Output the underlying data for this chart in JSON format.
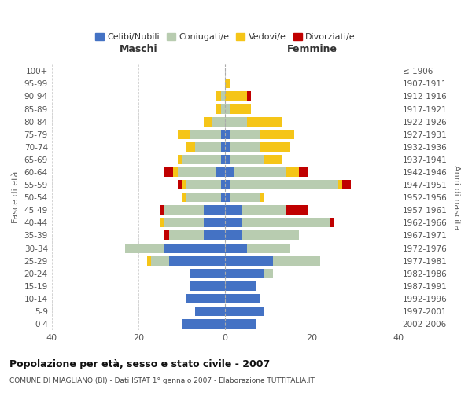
{
  "age_groups": [
    "0-4",
    "5-9",
    "10-14",
    "15-19",
    "20-24",
    "25-29",
    "30-34",
    "35-39",
    "40-44",
    "45-49",
    "50-54",
    "55-59",
    "60-64",
    "65-69",
    "70-74",
    "75-79",
    "80-84",
    "85-89",
    "90-94",
    "95-99",
    "100+"
  ],
  "birth_years": [
    "2002-2006",
    "1997-2001",
    "1992-1996",
    "1987-1991",
    "1982-1986",
    "1977-1981",
    "1972-1976",
    "1967-1971",
    "1962-1966",
    "1957-1961",
    "1952-1956",
    "1947-1951",
    "1942-1946",
    "1937-1941",
    "1932-1936",
    "1927-1931",
    "1922-1926",
    "1917-1921",
    "1912-1916",
    "1907-1911",
    "≤ 1906"
  ],
  "maschi": {
    "celibi": [
      10,
      7,
      9,
      8,
      8,
      13,
      14,
      5,
      5,
      5,
      1,
      1,
      2,
      1,
      1,
      1,
      0,
      0,
      0,
      0,
      0
    ],
    "coniugati": [
      0,
      0,
      0,
      0,
      0,
      4,
      9,
      8,
      9,
      9,
      8,
      8,
      9,
      9,
      6,
      7,
      3,
      1,
      1,
      0,
      0
    ],
    "vedovi": [
      0,
      0,
      0,
      0,
      0,
      1,
      0,
      0,
      1,
      0,
      1,
      1,
      1,
      1,
      2,
      3,
      2,
      1,
      1,
      0,
      0
    ],
    "divorziati": [
      0,
      0,
      0,
      0,
      0,
      0,
      0,
      1,
      0,
      1,
      0,
      1,
      2,
      0,
      0,
      0,
      0,
      0,
      0,
      0,
      0
    ]
  },
  "femmine": {
    "nubili": [
      7,
      9,
      8,
      7,
      9,
      11,
      5,
      4,
      4,
      4,
      1,
      1,
      2,
      1,
      1,
      1,
      0,
      0,
      0,
      0,
      0
    ],
    "coniugate": [
      0,
      0,
      0,
      0,
      2,
      11,
      10,
      13,
      20,
      10,
      7,
      25,
      12,
      8,
      7,
      7,
      5,
      1,
      0,
      0,
      0
    ],
    "vedove": [
      0,
      0,
      0,
      0,
      0,
      0,
      0,
      0,
      0,
      0,
      1,
      1,
      3,
      4,
      7,
      8,
      8,
      5,
      5,
      1,
      0
    ],
    "divorziate": [
      0,
      0,
      0,
      0,
      0,
      0,
      0,
      0,
      1,
      5,
      0,
      2,
      2,
      0,
      0,
      0,
      0,
      0,
      1,
      0,
      0
    ]
  },
  "colors": {
    "celibi_nubili": "#4472C4",
    "coniugati": "#B8CCB0",
    "vedovi": "#F5C518",
    "divorziati": "#C00000"
  },
  "xlim": 40,
  "title": "Popolazione per età, sesso e stato civile - 2007",
  "subtitle": "COMUNE DI MIAGLIANO (BI) - Dati ISTAT 1° gennaio 2007 - Elaborazione TUTTITALIA.IT",
  "ylabel_left": "Fasce di età",
  "ylabel_right": "Anni di nascita",
  "xlabel_maschi": "Maschi",
  "xlabel_femmine": "Femmine",
  "legend_labels": [
    "Celibi/Nubili",
    "Coniugati/e",
    "Vedovi/e",
    "Divorziati/e"
  ],
  "background_color": "#ffffff",
  "grid_color": "#cccccc"
}
